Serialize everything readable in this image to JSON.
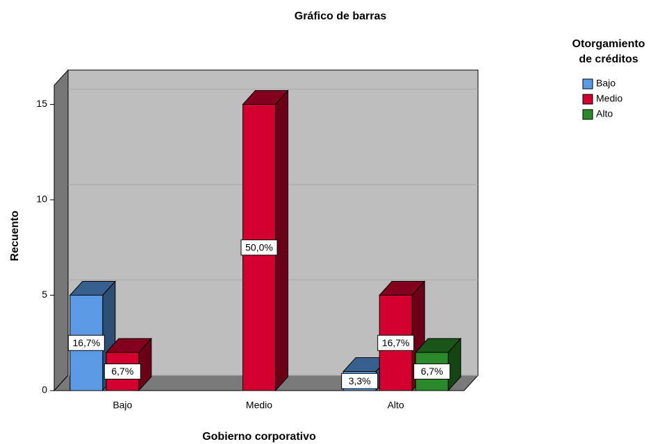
{
  "chart_data": {
    "type": "bar3d",
    "title": "Gráfico de barras",
    "x_label": "Gobierno corporativo",
    "y_label": "Recuento",
    "legend_title": [
      "Otorgamiento",
      "de créditos"
    ],
    "categories": [
      "Bajo",
      "Medio",
      "Alto"
    ],
    "series": [
      {
        "name": "Bajo",
        "color": "#5b9be6",
        "values": [
          5,
          null,
          1
        ],
        "percents": [
          16.7,
          null,
          3.3
        ],
        "percent_labels": [
          "16,7%",
          null,
          "3,3%"
        ]
      },
      {
        "name": "Medio",
        "color": "#d3002f",
        "values": [
          2,
          15,
          5
        ],
        "percents": [
          6.7,
          50.0,
          16.7
        ],
        "percent_labels": [
          "6,7%",
          "50,0%",
          "16,7%"
        ]
      },
      {
        "name": "Alto",
        "color": "#2a8a2a",
        "values": [
          null,
          null,
          2
        ],
        "percents": [
          null,
          null,
          6.7
        ],
        "percent_labels": [
          null,
          null,
          "6,7%"
        ]
      }
    ],
    "ylim": [
      0,
      16
    ],
    "yticks": [
      0,
      5,
      10,
      15
    ],
    "grid": true,
    "legend": "right"
  }
}
